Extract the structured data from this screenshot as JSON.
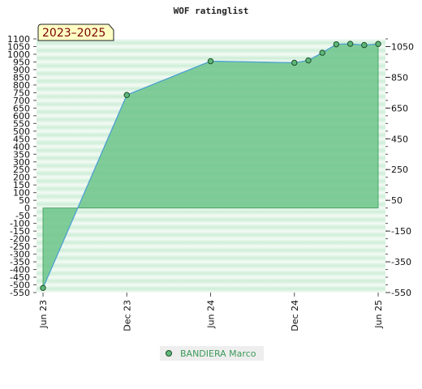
{
  "chart_data": {
    "type": "area",
    "title": "WOF ratinglist",
    "badge": "2023–2025",
    "x_ticks": [
      "Jun 23",
      "Dec 23",
      "Jun 24",
      "Dec 24",
      "Jun 25"
    ],
    "ylim": [
      -550,
      1100
    ],
    "y_ticks_left": [
      1100,
      1050,
      1000,
      950,
      900,
      850,
      800,
      750,
      700,
      650,
      600,
      550,
      500,
      450,
      400,
      350,
      300,
      250,
      200,
      150,
      100,
      50,
      0,
      -50,
      -100,
      -150,
      -200,
      -250,
      -300,
      -350,
      -400,
      -450,
      -500,
      -550
    ],
    "y_ticks_right": [
      1050,
      850,
      650,
      450,
      250,
      50,
      -150,
      -350,
      -550
    ],
    "series": [
      {
        "name": "BANDIERA Marco",
        "color": "#3aa85c",
        "x": [
          "2023-06",
          "2023-12",
          "2024-06",
          "2024-12",
          "2025-01",
          "2025-02",
          "2025-03",
          "2025-04",
          "2025-05",
          "2025-06"
        ],
        "values": [
          -520,
          735,
          955,
          945,
          960,
          1010,
          1065,
          1068,
          1060,
          1067
        ]
      }
    ],
    "grid": true,
    "legend": "bottom-center"
  }
}
